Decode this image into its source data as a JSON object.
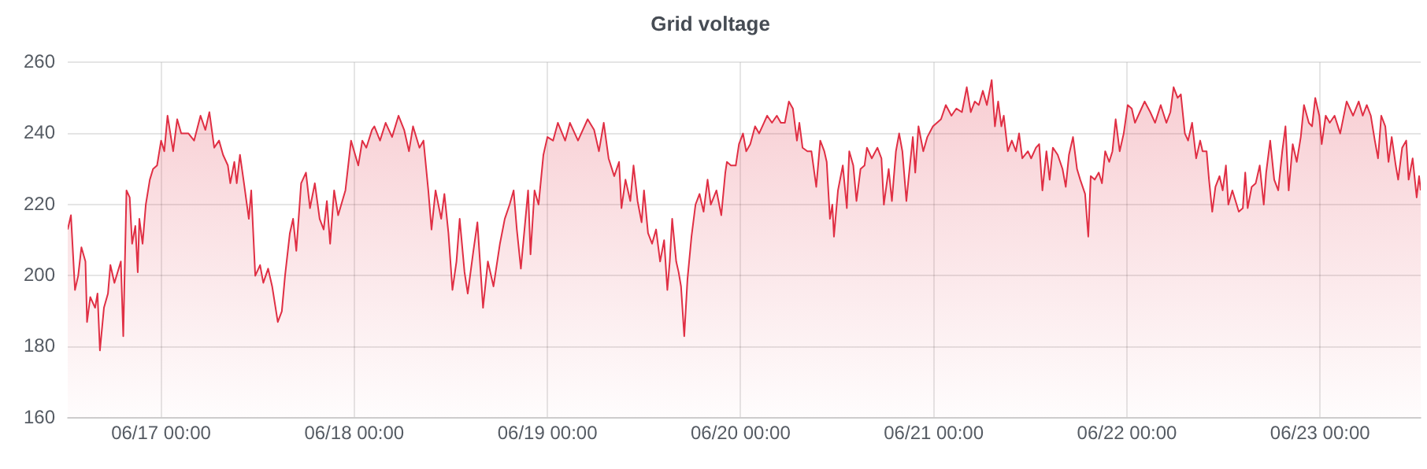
{
  "chart_data": {
    "type": "area",
    "title": "Grid voltage",
    "color": "#e02f44",
    "x": [
      "--06-16T12:24",
      "--06-16T12:48",
      "--06-16T13:18",
      "--06-16T13:42",
      "--06-16T14:06",
      "--06-16T14:36",
      "--06-16T14:48",
      "--06-16T15:12",
      "--06-16T15:48",
      "--06-16T16:06",
      "--06-16T16:24",
      "--06-16T16:54",
      "--06-16T17:24",
      "--06-16T17:42",
      "--06-16T18:12",
      "--06-16T19:00",
      "--06-16T19:18",
      "--06-16T19:42",
      "--06-16T20:06",
      "--06-16T20:24",
      "--06-16T20:48",
      "--06-16T21:06",
      "--06-16T21:18",
      "--06-16T21:42",
      "--06-16T22:06",
      "--06-16T22:36",
      "--06-16T23:00",
      "--06-16T23:30",
      "--06-17T00:00",
      "--06-17T00:24",
      "--06-17T00:48",
      "--06-17T01:30",
      "--06-17T02:00",
      "--06-17T02:30",
      "--06-17T03:24",
      "--06-17T04:06",
      "--06-17T04:54",
      "--06-17T05:30",
      "--06-17T06:00",
      "--06-17T06:36",
      "--06-17T07:12",
      "--06-17T07:42",
      "--06-17T08:18",
      "--06-17T08:36",
      "--06-17T09:06",
      "--06-17T09:24",
      "--06-17T09:48",
      "--06-17T10:18",
      "--06-17T10:54",
      "--06-17T11:12",
      "--06-17T11:42",
      "--06-17T12:18",
      "--06-17T12:42",
      "--06-17T13:18",
      "--06-17T13:48",
      "--06-17T14:30",
      "--06-17T15:00",
      "--06-17T15:24",
      "--06-17T16:00",
      "--06-17T16:24",
      "--06-17T16:48",
      "--06-17T17:24",
      "--06-17T18:00",
      "--06-17T18:30",
      "--06-17T19:06",
      "--06-17T19:42",
      "--06-17T20:12",
      "--06-17T20:36",
      "--06-17T21:00",
      "--06-17T21:30",
      "--06-17T22:00",
      "--06-17T22:54",
      "--06-17T23:36",
      "--06-18T00:30",
      "--06-18T01:00",
      "--06-18T01:30",
      "--06-18T02:12",
      "--06-18T02:30",
      "--06-18T03:12",
      "--06-18T03:54",
      "--06-18T04:42",
      "--06-18T05:30",
      "--06-18T06:12",
      "--06-18T06:48",
      "--06-18T07:18",
      "--06-18T08:06",
      "--06-18T08:36",
      "--06-18T09:12",
      "--06-18T09:36",
      "--06-18T10:06",
      "--06-18T10:48",
      "--06-18T11:12",
      "--06-18T11:42",
      "--06-18T12:12",
      "--06-18T12:42",
      "--06-18T13:06",
      "--06-18T13:42",
      "--06-18T14:06",
      "--06-18T14:48",
      "--06-18T15:18",
      "--06-18T16:00",
      "--06-18T16:36",
      "--06-18T17:18",
      "--06-18T18:06",
      "--06-18T18:42",
      "--06-18T19:18",
      "--06-18T19:48",
      "--06-18T20:12",
      "--06-18T20:42",
      "--06-18T21:36",
      "--06-18T21:54",
      "--06-18T22:24",
      "--06-18T22:54",
      "--06-18T23:30",
      "--06-19T00:00",
      "--06-19T00:42",
      "--06-19T01:18",
      "--06-19T02:12",
      "--06-19T02:48",
      "--06-19T03:48",
      "--06-19T05:00",
      "--06-19T05:48",
      "--06-19T06:24",
      "--06-19T07:00",
      "--06-19T07:36",
      "--06-19T08:18",
      "--06-19T08:54",
      "--06-19T09:12",
      "--06-19T09:42",
      "--06-19T10:18",
      "--06-19T10:42",
      "--06-19T11:12",
      "--06-19T11:42",
      "--06-19T12:00",
      "--06-19T12:30",
      "--06-19T13:00",
      "--06-19T13:30",
      "--06-19T14:00",
      "--06-19T14:30",
      "--06-19T14:54",
      "--06-19T15:12",
      "--06-19T15:30",
      "--06-19T16:00",
      "--06-19T16:18",
      "--06-19T16:36",
      "--06-19T17:00",
      "--06-19T17:24",
      "--06-19T17:54",
      "--06-19T18:24",
      "--06-19T18:54",
      "--06-19T19:24",
      "--06-19T19:54",
      "--06-19T20:18",
      "--06-19T21:00",
      "--06-19T21:36",
      "--06-19T22:06",
      "--06-19T22:18",
      "--06-19T22:48",
      "--06-19T23:24",
      "--06-19T23:48",
      "--06-20T00:18",
      "--06-20T00:42",
      "--06-20T01:12",
      "--06-20T01:48",
      "--06-20T02:18",
      "--06-20T02:54",
      "--06-20T03:18",
      "--06-20T03:54",
      "--06-20T04:30",
      "--06-20T05:00",
      "--06-20T05:30",
      "--06-20T06:00",
      "--06-20T06:30",
      "--06-20T07:00",
      "--06-20T07:18",
      "--06-20T07:42",
      "--06-20T08:18",
      "--06-20T08:48",
      "--06-20T09:24",
      "--06-20T09:54",
      "--06-20T10:24",
      "--06-20T10:42",
      "--06-20T11:06",
      "--06-20T11:24",
      "--06-20T11:36",
      "--06-20T12:06",
      "--06-20T12:42",
      "--06-20T13:12",
      "--06-20T13:30",
      "--06-20T14:00",
      "--06-20T14:24",
      "--06-20T14:54",
      "--06-20T15:24",
      "--06-20T15:42",
      "--06-20T16:18",
      "--06-20T17:00",
      "--06-20T17:30",
      "--06-20T17:48",
      "--06-20T18:24",
      "--06-20T18:48",
      "--06-20T19:18",
      "--06-20T19:42",
      "--06-20T20:06",
      "--06-20T20:36",
      "--06-20T20:54",
      "--06-20T21:24",
      "--06-20T21:42",
      "--06-20T22:06",
      "--06-20T22:42",
      "--06-20T23:12",
      "--06-20T23:54",
      "--06-21T00:54",
      "--06-21T01:30",
      "--06-21T02:12",
      "--06-21T02:48",
      "--06-21T03:30",
      "--06-21T04:06",
      "--06-21T04:36",
      "--06-21T05:06",
      "--06-21T05:36",
      "--06-21T06:06",
      "--06-21T06:36",
      "--06-21T07:12",
      "--06-21T07:36",
      "--06-21T08:00",
      "--06-21T08:24",
      "--06-21T08:42",
      "--06-21T09:12",
      "--06-21T09:42",
      "--06-21T10:12",
      "--06-21T10:36",
      "--06-21T11:00",
      "--06-21T11:42",
      "--06-21T12:06",
      "--06-21T12:42",
      "--06-21T13:06",
      "--06-21T13:30",
      "--06-21T14:00",
      "--06-21T14:24",
      "--06-21T14:48",
      "--06-21T15:24",
      "--06-21T16:00",
      "--06-21T16:24",
      "--06-21T16:48",
      "--06-21T17:18",
      "--06-21T17:48",
      "--06-21T18:12",
      "--06-21T18:48",
      "--06-21T19:12",
      "--06-21T19:30",
      "--06-21T20:00",
      "--06-21T20:30",
      "--06-21T20:54",
      "--06-21T21:18",
      "--06-21T21:48",
      "--06-21T22:12",
      "--06-21T22:36",
      "--06-21T23:06",
      "--06-21T23:36",
      "--06-22T00:06",
      "--06-22T00:36",
      "--06-22T01:00",
      "--06-22T01:36",
      "--06-22T02:12",
      "--06-22T02:54",
      "--06-22T03:30",
      "--06-22T04:12",
      "--06-22T04:54",
      "--06-22T05:24",
      "--06-22T05:48",
      "--06-22T06:18",
      "--06-22T06:42",
      "--06-22T07:12",
      "--06-22T07:36",
      "--06-22T08:06",
      "--06-22T08:36",
      "--06-22T09:06",
      "--06-22T09:24",
      "--06-22T09:54",
      "--06-22T10:12",
      "--06-22T10:36",
      "--06-22T11:00",
      "--06-22T11:30",
      "--06-22T11:54",
      "--06-22T12:18",
      "--06-22T12:36",
      "--06-22T13:06",
      "--06-22T13:30",
      "--06-22T13:54",
      "--06-22T14:24",
      "--06-22T14:42",
      "--06-22T15:00",
      "--06-22T15:30",
      "--06-22T16:00",
      "--06-22T16:30",
      "--06-22T17:00",
      "--06-22T17:18",
      "--06-22T17:48",
      "--06-22T18:18",
      "--06-22T18:48",
      "--06-22T19:18",
      "--06-22T19:42",
      "--06-22T20:06",
      "--06-22T20:36",
      "--06-22T21:06",
      "--06-22T21:36",
      "--06-22T22:00",
      "--06-22T22:36",
      "--06-22T23:00",
      "--06-22T23:24",
      "--06-22T23:54",
      "--06-23T00:12",
      "--06-23T00:42",
      "--06-23T01:12",
      "--06-23T01:48",
      "--06-23T02:30",
      "--06-23T03:18",
      "--06-23T04:06",
      "--06-23T04:48",
      "--06-23T05:18",
      "--06-23T05:48",
      "--06-23T06:18",
      "--06-23T06:48",
      "--06-23T07:12",
      "--06-23T07:36",
      "--06-23T08:06",
      "--06-23T08:30",
      "--06-23T08:54",
      "--06-23T09:24",
      "--06-23T09:42",
      "--06-23T10:12",
      "--06-23T10:42",
      "--06-23T11:00",
      "--06-23T11:30",
      "--06-23T12:00",
      "--06-23T12:18",
      "--06-23T12:30"
    ],
    "values": [
      213,
      217,
      196,
      200,
      208,
      204,
      187,
      194,
      191,
      195,
      179,
      191,
      195,
      203,
      198,
      204,
      183,
      224,
      222,
      209,
      214,
      201,
      216,
      209,
      220,
      227,
      230,
      231,
      238,
      235,
      245,
      235,
      244,
      240,
      240,
      238,
      245,
      241,
      246,
      236,
      238,
      234,
      231,
      226,
      232,
      226,
      234,
      226,
      216,
      224,
      200,
      203,
      198,
      202,
      197,
      187,
      190,
      200,
      212,
      216,
      207,
      226,
      229,
      219,
      226,
      216,
      213,
      221,
      209,
      224,
      217,
      224,
      238,
      231,
      238,
      236,
      241,
      242,
      238,
      243,
      239,
      245,
      241,
      235,
      242,
      236,
      238,
      224,
      213,
      224,
      216,
      223,
      212,
      196,
      204,
      216,
      201,
      195,
      207,
      215,
      191,
      204,
      197,
      209,
      216,
      220,
      224,
      213,
      202,
      224,
      206,
      224,
      220,
      234,
      239,
      238,
      243,
      238,
      243,
      238,
      244,
      241,
      235,
      243,
      233,
      228,
      232,
      219,
      227,
      221,
      231,
      221,
      215,
      224,
      212,
      209,
      213,
      204,
      210,
      196,
      204,
      216,
      204,
      201,
      197,
      183,
      199,
      211,
      220,
      223,
      218,
      227,
      220,
      224,
      217,
      229,
      232,
      231,
      231,
      237,
      240,
      235,
      237,
      242,
      240,
      243,
      245,
      243,
      245,
      243,
      243,
      249,
      247,
      238,
      243,
      236,
      235,
      235,
      225,
      238,
      235,
      232,
      216,
      220,
      211,
      224,
      231,
      219,
      235,
      231,
      221,
      230,
      231,
      236,
      233,
      236,
      233,
      220,
      230,
      221,
      235,
      240,
      235,
      221,
      228,
      239,
      229,
      242,
      235,
      239,
      242,
      244,
      248,
      245,
      247,
      246,
      253,
      246,
      249,
      248,
      252,
      248,
      255,
      242,
      249,
      242,
      245,
      235,
      238,
      235,
      240,
      233,
      235,
      233,
      236,
      237,
      224,
      235,
      227,
      236,
      234,
      230,
      225,
      234,
      239,
      230,
      227,
      223,
      211,
      228,
      227,
      229,
      226,
      235,
      232,
      235,
      244,
      235,
      240,
      248,
      247,
      243,
      246,
      249,
      246,
      243,
      248,
      243,
      246,
      253,
      250,
      251,
      240,
      238,
      243,
      233,
      238,
      235,
      235,
      227,
      218,
      225,
      228,
      224,
      231,
      220,
      224,
      221,
      218,
      219,
      229,
      219,
      225,
      226,
      231,
      220,
      229,
      238,
      227,
      224,
      235,
      242,
      224,
      237,
      232,
      239,
      248,
      243,
      242,
      250,
      245,
      237,
      245,
      243,
      245,
      240,
      249,
      245,
      249,
      245,
      248,
      245,
      238,
      233,
      245,
      242,
      232,
      239,
      231,
      227,
      236,
      238,
      227,
      233,
      222,
      228,
      224
    ],
    "xlim": [
      "--06-16T12:24",
      "--06-23T12:30"
    ],
    "xticks": [
      {
        "value": "--06-17T00:00",
        "label": "06/17 00:00"
      },
      {
        "value": "--06-18T00:00",
        "label": "06/18 00:00"
      },
      {
        "value": "--06-19T00:00",
        "label": "06/19 00:00"
      },
      {
        "value": "--06-20T00:00",
        "label": "06/20 00:00"
      },
      {
        "value": "--06-21T00:00",
        "label": "06/21 00:00"
      },
      {
        "value": "--06-22T00:00",
        "label": "06/22 00:00"
      },
      {
        "value": "--06-23T00:00",
        "label": "06/23 00:00"
      }
    ],
    "ylim": [
      160,
      260
    ],
    "yticks": [
      160,
      180,
      200,
      220,
      240,
      260
    ],
    "grid": true
  }
}
